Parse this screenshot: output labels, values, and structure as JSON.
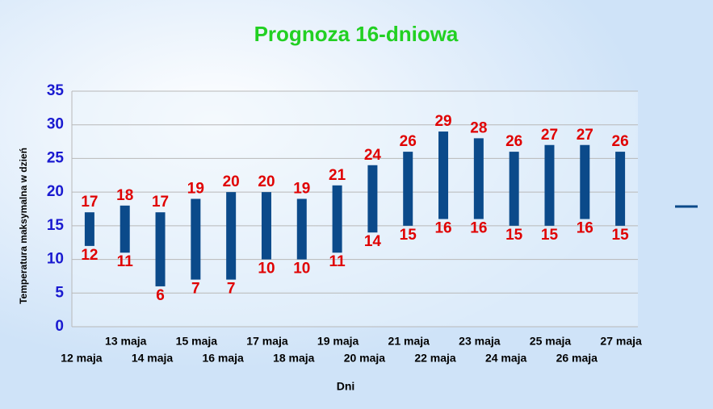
{
  "chart_data": {
    "type": "range-bar",
    "title": "Prognoza 16-dniowa",
    "x_label": "Dni",
    "y_label": "Temperatura maksymalna w dzień",
    "categories": [
      "12 maja",
      "13 maja",
      "14 maja",
      "15 maja",
      "16 maja",
      "17 maja",
      "18 maja",
      "19 maja",
      "20 maja",
      "21 maja",
      "22 maja",
      "23 maja",
      "24 maja",
      "25 maja",
      "26 maja",
      "27 maja"
    ],
    "high": [
      17,
      18,
      17,
      19,
      20,
      20,
      19,
      21,
      24,
      26,
      29,
      28,
      26,
      27,
      27,
      26
    ],
    "low": [
      12,
      11,
      6,
      7,
      7,
      10,
      10,
      11,
      14,
      15,
      16,
      16,
      15,
      15,
      16,
      15
    ],
    "color": "#0b4a8a",
    "label_color": "#e00000",
    "ylim": [
      0,
      35
    ],
    "yticks": [
      0,
      5,
      10,
      15,
      20,
      25,
      30,
      35
    ],
    "grid": true
  }
}
